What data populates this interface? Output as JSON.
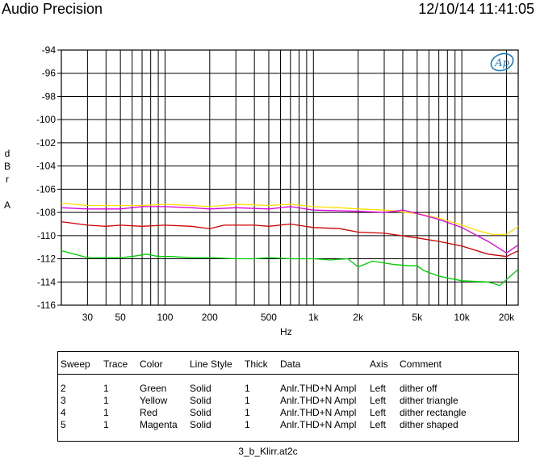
{
  "header": {
    "title": "Audio Precision",
    "timestamp": "12/10/14 11:41:05"
  },
  "chart_data": {
    "type": "line",
    "xscale": "log",
    "xlim": [
      20,
      24000
    ],
    "ylim": [
      -116,
      -94
    ],
    "yticks": [
      -94,
      -96,
      -98,
      -100,
      -102,
      -104,
      -106,
      -108,
      -110,
      -112,
      -114,
      -116
    ],
    "xticks": [
      30,
      50,
      100,
      200,
      500,
      1000,
      2000,
      5000,
      10000,
      20000
    ],
    "xtick_labels": [
      "30",
      "50",
      "100",
      "200",
      "500",
      "1k",
      "2k",
      "5k",
      "10k",
      "20k"
    ],
    "xlabel": "Hz",
    "ylabel": [
      "d",
      "B",
      "r",
      "",
      "A"
    ],
    "grid": true,
    "series": [
      {
        "name": "Green",
        "color": "#00cc00",
        "points": [
          [
            20,
            -111.3
          ],
          [
            30,
            -111.9
          ],
          [
            50,
            -111.9
          ],
          [
            60,
            -111.8
          ],
          [
            75,
            -111.6
          ],
          [
            90,
            -111.8
          ],
          [
            110,
            -111.8
          ],
          [
            150,
            -111.9
          ],
          [
            200,
            -111.9
          ],
          [
            300,
            -112.0
          ],
          [
            400,
            -112.0
          ],
          [
            500,
            -111.9
          ],
          [
            700,
            -112.0
          ],
          [
            1000,
            -112.0
          ],
          [
            1300,
            -112.1
          ],
          [
            1700,
            -112.0
          ],
          [
            2000,
            -112.7
          ],
          [
            2500,
            -112.2
          ],
          [
            3500,
            -112.5
          ],
          [
            4500,
            -112.6
          ],
          [
            5000,
            -112.6
          ],
          [
            5500,
            -113.0
          ],
          [
            7000,
            -113.5
          ],
          [
            10000,
            -113.9
          ],
          [
            15000,
            -114.0
          ],
          [
            18000,
            -114.3
          ],
          [
            20000,
            -113.8
          ],
          [
            24000,
            -112.9
          ]
        ]
      },
      {
        "name": "Yellow",
        "color": "#ffdd00",
        "points": [
          [
            20,
            -107.2
          ],
          [
            30,
            -107.4
          ],
          [
            50,
            -107.4
          ],
          [
            70,
            -107.4
          ],
          [
            100,
            -107.3
          ],
          [
            150,
            -107.4
          ],
          [
            200,
            -107.5
          ],
          [
            300,
            -107.3
          ],
          [
            500,
            -107.4
          ],
          [
            700,
            -107.3
          ],
          [
            1000,
            -107.5
          ],
          [
            1500,
            -107.6
          ],
          [
            2000,
            -107.7
          ],
          [
            3000,
            -107.8
          ],
          [
            5000,
            -108.1
          ],
          [
            7000,
            -108.5
          ],
          [
            10000,
            -109.1
          ],
          [
            13000,
            -109.6
          ],
          [
            16000,
            -109.9
          ],
          [
            20000,
            -109.9
          ],
          [
            24000,
            -109.2
          ]
        ]
      },
      {
        "name": "Red",
        "color": "#cc0000",
        "points": [
          [
            20,
            -108.8
          ],
          [
            30,
            -109.1
          ],
          [
            40,
            -109.2
          ],
          [
            50,
            -109.1
          ],
          [
            70,
            -109.2
          ],
          [
            100,
            -109.1
          ],
          [
            150,
            -109.2
          ],
          [
            200,
            -109.4
          ],
          [
            250,
            -109.1
          ],
          [
            400,
            -109.1
          ],
          [
            500,
            -109.2
          ],
          [
            700,
            -109.0
          ],
          [
            1000,
            -109.3
          ],
          [
            1500,
            -109.4
          ],
          [
            2000,
            -109.7
          ],
          [
            3000,
            -109.8
          ],
          [
            5000,
            -110.2
          ],
          [
            7000,
            -110.5
          ],
          [
            10000,
            -110.9
          ],
          [
            15000,
            -111.6
          ],
          [
            20000,
            -111.8
          ],
          [
            24000,
            -111.3
          ]
        ]
      },
      {
        "name": "Magenta",
        "color": "#dd00dd",
        "points": [
          [
            20,
            -107.6
          ],
          [
            30,
            -107.7
          ],
          [
            50,
            -107.7
          ],
          [
            70,
            -107.5
          ],
          [
            100,
            -107.5
          ],
          [
            150,
            -107.6
          ],
          [
            200,
            -107.7
          ],
          [
            300,
            -107.6
          ],
          [
            500,
            -107.7
          ],
          [
            700,
            -107.5
          ],
          [
            1000,
            -107.8
          ],
          [
            2000,
            -107.9
          ],
          [
            3000,
            -108.0
          ],
          [
            3500,
            -107.9
          ],
          [
            4000,
            -107.8
          ],
          [
            5000,
            -108.1
          ],
          [
            7000,
            -108.6
          ],
          [
            10000,
            -109.3
          ],
          [
            15000,
            -110.5
          ],
          [
            20000,
            -111.5
          ],
          [
            24000,
            -110.8
          ]
        ]
      }
    ]
  },
  "legend": {
    "headers": [
      "Sweep",
      "Trace",
      "Color",
      "Line Style",
      "Thick",
      "Data",
      "Axis",
      "Comment"
    ],
    "rows": [
      [
        "2",
        "1",
        "Green",
        "Solid",
        "1",
        "Anlr.THD+N Ampl",
        "Left",
        "dither off"
      ],
      [
        "3",
        "1",
        "Yellow",
        "Solid",
        "1",
        "Anlr.THD+N Ampl",
        "Left",
        "dither triangle"
      ],
      [
        "4",
        "1",
        "Red",
        "Solid",
        "1",
        "Anlr.THD+N Ampl",
        "Left",
        "dither rectangle"
      ],
      [
        "5",
        "1",
        "Magenta",
        "Solid",
        "1",
        "Anlr.THD+N Ampl",
        "Left",
        "dither shaped"
      ]
    ]
  },
  "footer": {
    "filename": "3_b_Klirr.at2c"
  },
  "logo": {
    "text": "Ap",
    "color": "#1a7fc1"
  }
}
